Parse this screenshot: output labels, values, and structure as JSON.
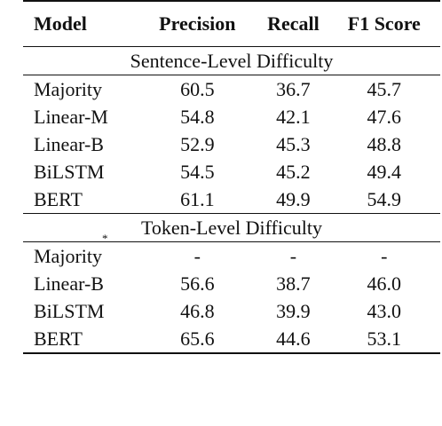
{
  "header": {
    "model": "Model",
    "precision": "Precision",
    "recall": "Recall",
    "f1": "F1 Score"
  },
  "sentence_level": {
    "title": "Sentence-Level Difficulty",
    "rows": [
      {
        "model": "Majority",
        "precision": "60.5",
        "recall": "36.7",
        "f1": "45.7"
      },
      {
        "model": "Linear-M",
        "precision": "54.8",
        "recall": "42.1",
        "f1": "47.6"
      },
      {
        "model": "Linear-B",
        "precision": "52.9",
        "recall": "45.3",
        "f1": "48.8"
      },
      {
        "model": "BiLSTM",
        "precision": "54.5",
        "recall": "45.2",
        "f1": "49.4"
      },
      {
        "model": "BERT",
        "precision": "61.1",
        "recall": "49.9",
        "f1": "54.9"
      }
    ]
  },
  "token_level": {
    "title": "Token-Level Difficulty",
    "rows": [
      {
        "model": "Majority",
        "marker": "*",
        "precision": "-",
        "recall": "-",
        "f1": "-"
      },
      {
        "model": "Linear-B",
        "precision": "56.6",
        "recall": "38.7",
        "f1": "46.0"
      },
      {
        "model": "BiLSTM",
        "precision": "46.8",
        "recall": "39.9",
        "f1": "43.0"
      },
      {
        "model": "BERT",
        "precision": "65.6",
        "recall": "44.6",
        "f1": "53.1"
      }
    ]
  }
}
